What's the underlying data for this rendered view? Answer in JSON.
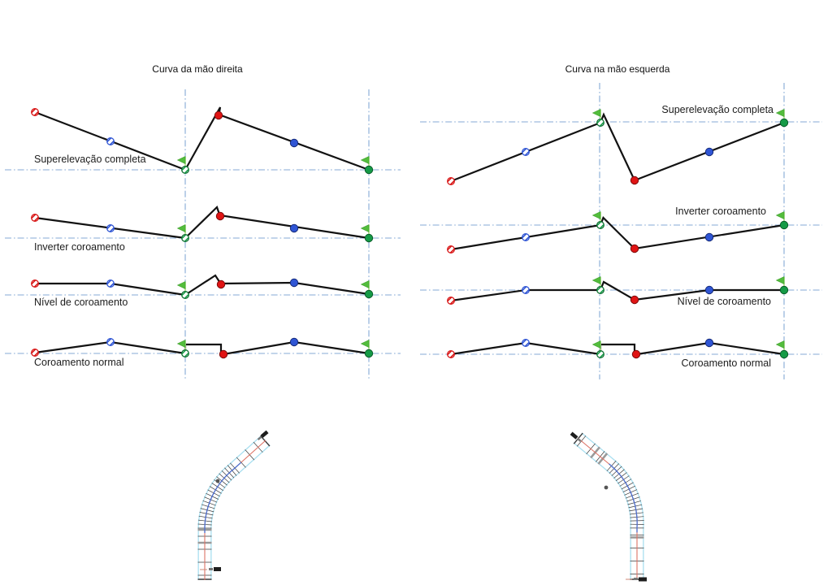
{
  "diagram": {
    "panels": [
      {
        "id": "right-hand-curve",
        "title": "Curva da mão direita",
        "row_labels": [
          "Superelevação completa",
          "Inverter coroamento",
          "Nível de coroamento",
          "Coroamento normal"
        ]
      },
      {
        "id": "left-hand-curve",
        "title": "Curva na mão esquerda",
        "row_labels": [
          "Superelevação completa",
          "Inverter coroamento",
          "Nível de coroamento",
          "Coroamento normal"
        ]
      }
    ],
    "marker_types": [
      "hatched-circle-red",
      "hatched-circle-blue",
      "hatched-circle-green",
      "dot-red",
      "dot-blue",
      "dot-green",
      "green-flag"
    ],
    "colors": {
      "guide_line": "#84a9d4",
      "profile_line": "#121212",
      "point_red": "#d81414",
      "point_blue": "#2f55d4",
      "point_green": "#159a46",
      "flag_pennant": "#53bd3c",
      "flag_pole": "#b9e394",
      "road_edge": "#a9dff0",
      "road_centerline": "#dd7366",
      "road_curve_axis": "#4a6fd0",
      "road_tick": "#3a3a3a",
      "road_band": "#9a9a9a"
    }
  }
}
